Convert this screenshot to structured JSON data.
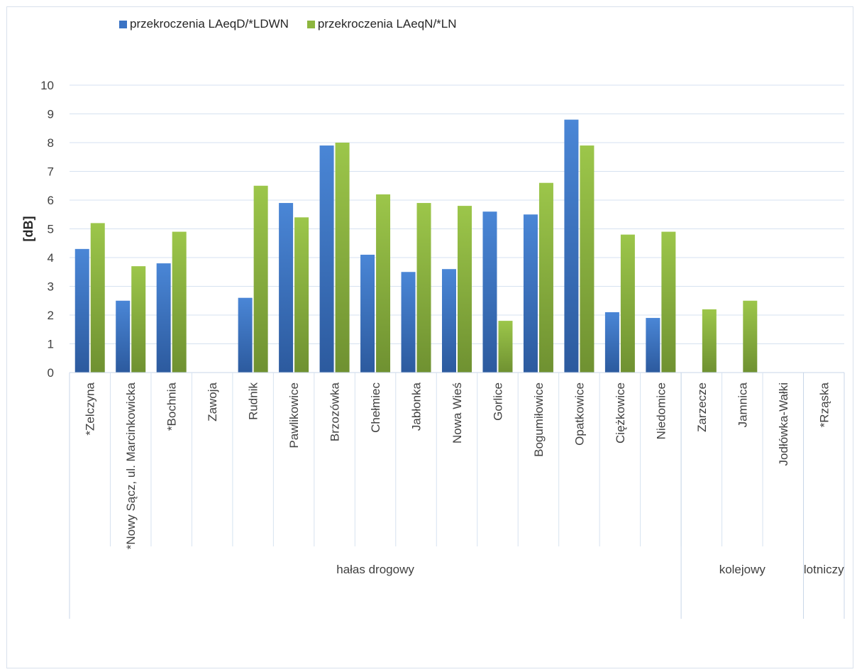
{
  "chart_data": {
    "type": "bar",
    "ylabel": "[dB]",
    "ylim": [
      0,
      10
    ],
    "yticks": [
      "0",
      "1",
      "2",
      "3",
      "4",
      "5",
      "6",
      "7",
      "8",
      "9",
      "10"
    ],
    "grid": true,
    "legend_position": "top",
    "categories": [
      "*Zelczyna",
      "*Nowy Sącz, ul. Marcinkowicka",
      "*Bochnia",
      "Zawoja",
      "Rudnik",
      "Pawlikowice",
      "Brzozówka",
      "Chełmiec",
      "Jabłonka",
      "Nowa Wieś",
      "Gorlice",
      "Bogumiłowice",
      "Opatkowice",
      "Ciężkowice",
      "Niedomice",
      "Zarzecze",
      "Jamnica",
      "Jodłówka-Wałki",
      "*Rząska"
    ],
    "groups": [
      {
        "label": "hałas drogowy",
        "count": 15
      },
      {
        "label": "kolejowy",
        "count": 3
      },
      {
        "label": "lotniczy",
        "count": 1
      }
    ],
    "series": [
      {
        "name": "przekroczenia LAeqD/*LDWN",
        "color": "#3a73c4",
        "values": [
          4.3,
          2.5,
          3.8,
          0,
          2.6,
          5.9,
          7.9,
          4.1,
          3.5,
          3.6,
          5.6,
          5.5,
          8.8,
          2.1,
          1.9,
          0,
          0,
          0,
          0
        ]
      },
      {
        "name": "przekroczenia LAeqN/*LN",
        "color": "#8db63e",
        "values": [
          5.2,
          3.7,
          4.9,
          0,
          6.5,
          5.4,
          8.0,
          6.2,
          5.9,
          5.8,
          1.8,
          6.6,
          7.9,
          4.8,
          4.9,
          2.2,
          2.5,
          0,
          0
        ]
      }
    ]
  }
}
